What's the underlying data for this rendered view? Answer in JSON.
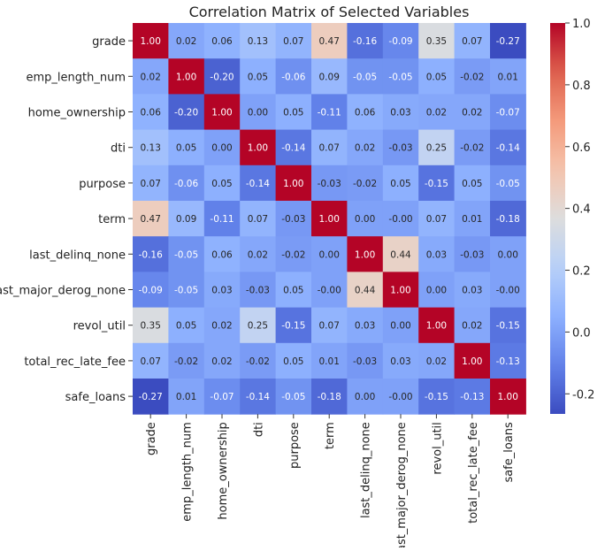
{
  "chart_data": {
    "type": "heatmap",
    "title": "Correlation Matrix of Selected Variables",
    "labels": [
      "grade",
      "emp_length_num",
      "home_ownership",
      "dti",
      "purpose",
      "term",
      "last_delinq_none",
      "last_major_derog_none",
      "revol_util",
      "total_rec_late_fee",
      "safe_loans"
    ],
    "matrix": [
      [
        1.0,
        0.02,
        0.06,
        0.13,
        0.07,
        0.47,
        -0.16,
        -0.09,
        0.35,
        0.07,
        -0.27
      ],
      [
        0.02,
        1.0,
        -0.2,
        0.05,
        -0.06,
        0.09,
        -0.05,
        -0.05,
        0.05,
        -0.02,
        0.01
      ],
      [
        0.06,
        -0.2,
        1.0,
        0.0,
        0.05,
        -0.11,
        0.06,
        0.03,
        0.02,
        0.02,
        -0.07
      ],
      [
        0.13,
        0.05,
        0.0,
        1.0,
        -0.14,
        0.07,
        0.02,
        -0.03,
        0.25,
        -0.02,
        -0.14
      ],
      [
        0.07,
        -0.06,
        0.05,
        -0.14,
        1.0,
        -0.03,
        -0.02,
        0.05,
        -0.15,
        0.05,
        -0.05
      ],
      [
        0.47,
        0.09,
        -0.11,
        0.07,
        -0.03,
        1.0,
        0.0,
        -0.0,
        0.07,
        0.01,
        -0.18
      ],
      [
        -0.16,
        -0.05,
        0.06,
        0.02,
        -0.02,
        0.0,
        1.0,
        0.44,
        0.03,
        -0.03,
        0.0
      ],
      [
        -0.09,
        -0.05,
        0.03,
        -0.03,
        0.05,
        -0.0,
        0.44,
        1.0,
        0.0,
        0.03,
        -0.0
      ],
      [
        0.35,
        0.05,
        0.02,
        0.25,
        -0.15,
        0.07,
        0.03,
        0.0,
        1.0,
        0.02,
        -0.15
      ],
      [
        0.07,
        -0.02,
        0.02,
        -0.02,
        0.05,
        0.01,
        -0.03,
        0.03,
        0.02,
        1.0,
        -0.13
      ],
      [
        -0.27,
        0.01,
        -0.07,
        -0.14,
        -0.05,
        -0.18,
        0.0,
        -0.0,
        -0.15,
        -0.13,
        1.0
      ]
    ],
    "colormap": "coolwarm",
    "vrange": [
      -0.265,
      1.0
    ],
    "colorbar_ticks": [
      "1.0",
      "0.8",
      "0.6",
      "0.4",
      "0.2",
      "0.0",
      "-0.2"
    ],
    "colorbar_tick_values": [
      1.0,
      0.8,
      0.6,
      0.4,
      0.2,
      0.0,
      -0.2
    ]
  }
}
